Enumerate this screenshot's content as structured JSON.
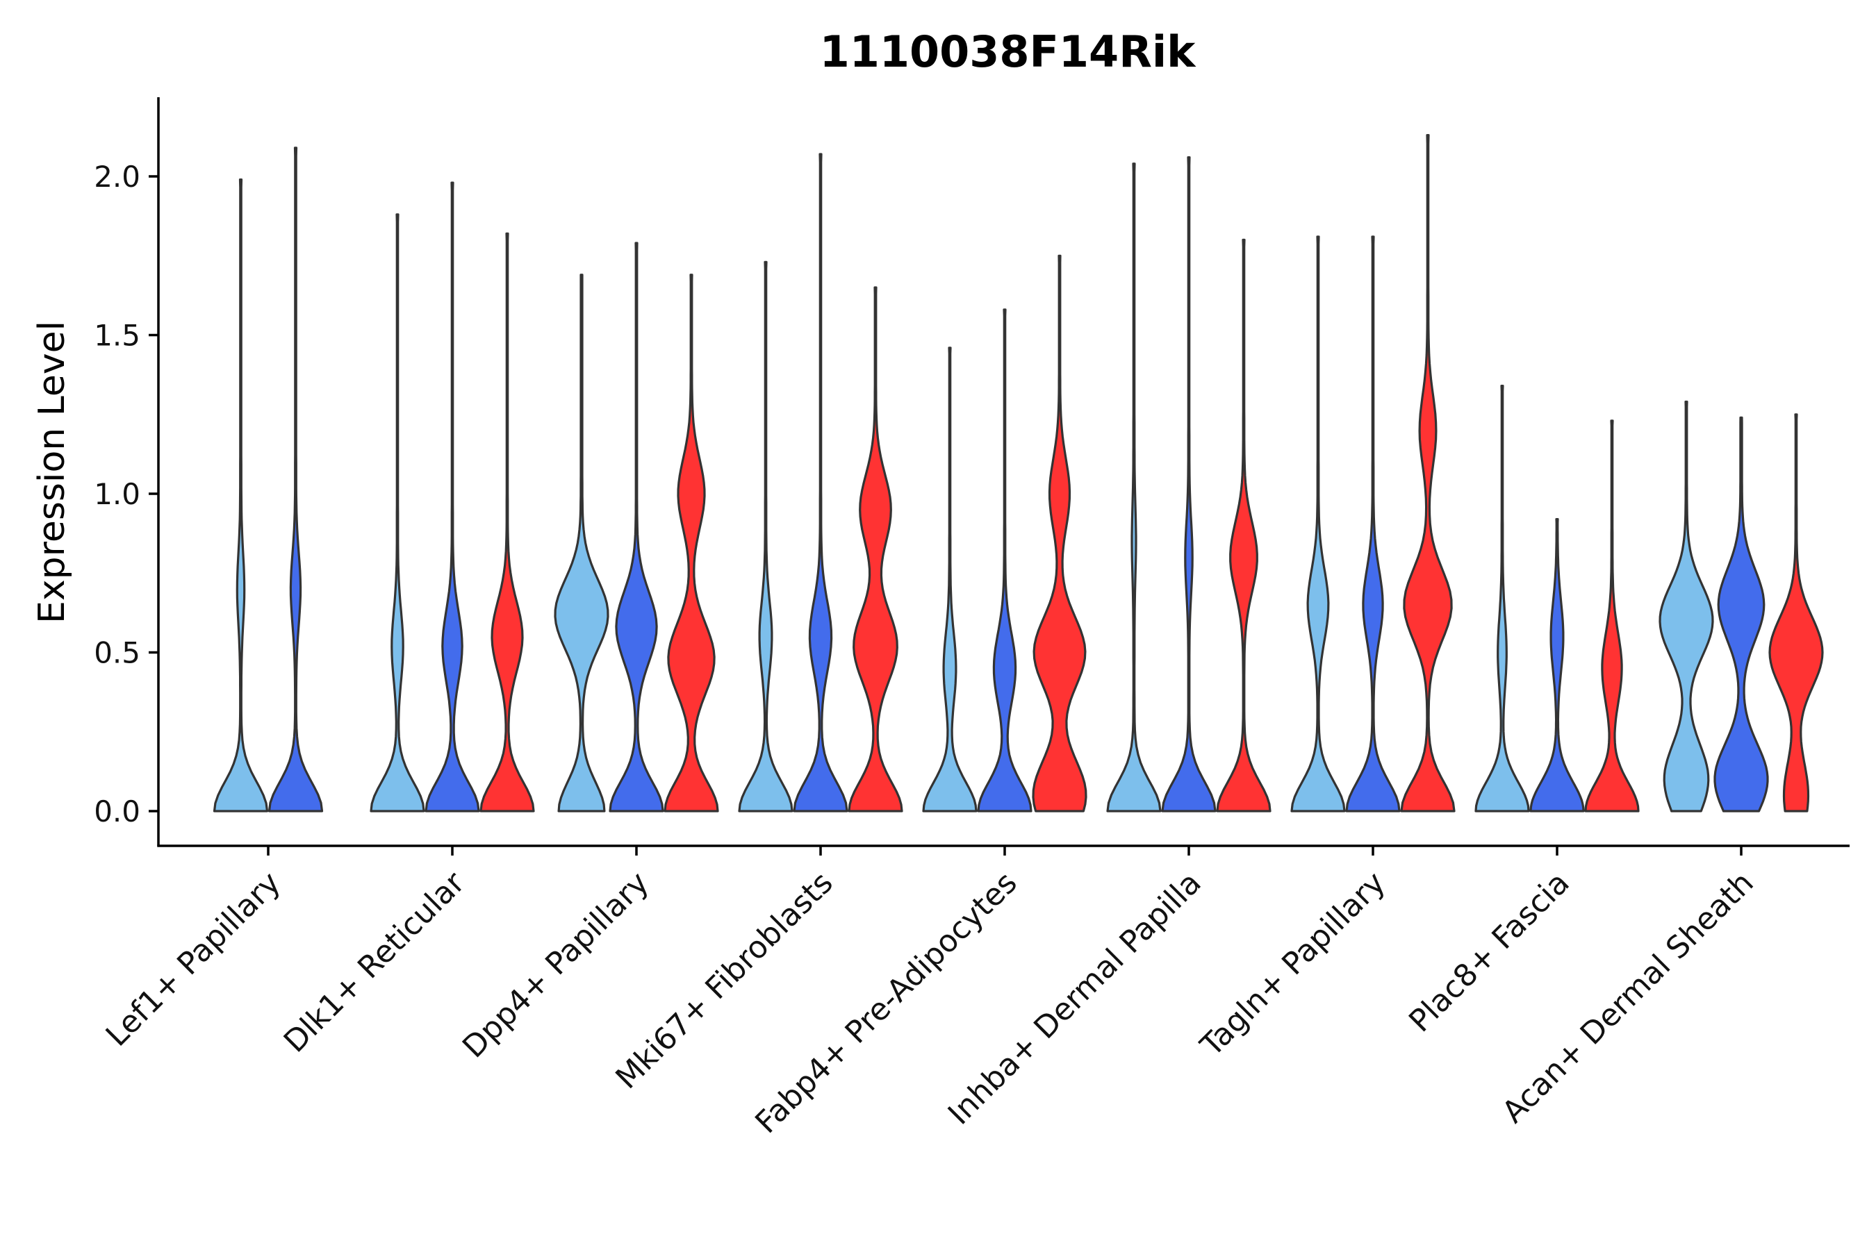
{
  "chart_data": {
    "type": "violin",
    "title": "1110038F14Rik",
    "xlabel": "",
    "ylabel": "Expression Level",
    "ylim": [
      -0.105,
      2.25
    ],
    "yticks": [
      0.0,
      0.5,
      1.0,
      1.5,
      2.0
    ],
    "ytick_labels": [
      "0.0",
      "0.5",
      "1.0",
      "1.5",
      "2.0"
    ],
    "categories": [
      "Lef1+ Papillary",
      "Dlk1+ Reticular",
      "Dpp4+ Papillary",
      "Mki67+ Fibroblasts",
      "Fabp4+ Pre-Adipocytes",
      "Inhba+ Dermal Papilla",
      "Tagln+ Papillary",
      "Plac8+ Fascia",
      "Acan+ Dermal Sheath"
    ],
    "series_colors": {
      "light": "#7DBFEC",
      "blue": "#436CEC",
      "red": "#FF3333"
    },
    "groups": [
      {
        "category": "Lef1+ Papillary",
        "violins": [
          {
            "color": "light",
            "max": 1.99,
            "modes": [
              [
                0,
                1.0
              ],
              [
                0.7,
                0.12
              ]
            ]
          },
          {
            "color": "blue",
            "max": 2.09,
            "modes": [
              [
                0,
                1.0
              ],
              [
                0.7,
                0.17
              ]
            ]
          }
        ]
      },
      {
        "category": "Dlk1+ Reticular",
        "violins": [
          {
            "color": "light",
            "max": 1.88,
            "modes": [
              [
                0,
                1.0
              ],
              [
                0.52,
                0.2
              ]
            ]
          },
          {
            "color": "blue",
            "max": 1.98,
            "modes": [
              [
                0,
                1.0
              ],
              [
                0.52,
                0.36
              ]
            ]
          },
          {
            "color": "red",
            "max": 1.82,
            "modes": [
              [
                0,
                1.0
              ],
              [
                0.55,
                0.57
              ]
            ]
          }
        ]
      },
      {
        "category": "Dpp4+ Papillary",
        "violins": [
          {
            "color": "light",
            "max": 1.69,
            "modes": [
              [
                0,
                0.62
              ],
              [
                0.62,
                0.72
              ]
            ]
          },
          {
            "color": "blue",
            "max": 1.79,
            "modes": [
              [
                0,
                0.92
              ],
              [
                0.58,
                0.7
              ]
            ]
          },
          {
            "color": "red",
            "max": 1.69,
            "modes": [
              [
                0,
                0.92
              ],
              [
                0.48,
                0.8
              ],
              [
                1.0,
                0.45
              ]
            ]
          }
        ]
      },
      {
        "category": "Mki67+ Fibroblasts",
        "violins": [
          {
            "color": "light",
            "max": 1.73,
            "modes": [
              [
                0,
                1.0
              ],
              [
                0.55,
                0.22
              ]
            ]
          },
          {
            "color": "blue",
            "max": 2.07,
            "modes": [
              [
                0,
                1.0
              ],
              [
                0.55,
                0.4
              ]
            ]
          },
          {
            "color": "red",
            "max": 1.65,
            "modes": [
              [
                0,
                0.95
              ],
              [
                0.52,
                0.78
              ],
              [
                0.95,
                0.55
              ]
            ]
          }
        ]
      },
      {
        "category": "Fabp4+ Pre-Adipocytes",
        "violins": [
          {
            "color": "light",
            "max": 1.46,
            "modes": [
              [
                0,
                1.0
              ],
              [
                0.45,
                0.22
              ]
            ]
          },
          {
            "color": "blue",
            "max": 1.58,
            "modes": [
              [
                0,
                1.0
              ],
              [
                0.45,
                0.4
              ]
            ]
          },
          {
            "color": "red",
            "max": 1.75,
            "modes": [
              [
                0.05,
                0.95
              ],
              [
                0.5,
                0.92
              ],
              [
                1.0,
                0.35
              ]
            ]
          }
        ]
      },
      {
        "category": "Inhba+ Dermal Papilla",
        "violins": [
          {
            "color": "light",
            "max": 2.04,
            "modes": [
              [
                0,
                1.0
              ],
              [
                0.85,
                0.06
              ]
            ]
          },
          {
            "color": "blue",
            "max": 2.06,
            "modes": [
              [
                0,
                1.0
              ],
              [
                0.8,
                0.12
              ]
            ]
          },
          {
            "color": "red",
            "max": 1.8,
            "modes": [
              [
                0,
                1.0
              ],
              [
                0.8,
                0.5
              ]
            ]
          }
        ]
      },
      {
        "category": "Tagln+ Papillary",
        "violins": [
          {
            "color": "light",
            "max": 1.81,
            "modes": [
              [
                0,
                1.0
              ],
              [
                0.65,
                0.38
              ]
            ]
          },
          {
            "color": "blue",
            "max": 1.81,
            "modes": [
              [
                0,
                1.0
              ],
              [
                0.65,
                0.36
              ]
            ]
          },
          {
            "color": "red",
            "max": 2.13,
            "modes": [
              [
                0,
                1.0
              ],
              [
                0.65,
                0.9
              ],
              [
                1.2,
                0.3
              ]
            ]
          }
        ]
      },
      {
        "category": "Plac8+ Fascia",
        "violins": [
          {
            "color": "light",
            "max": 1.34,
            "modes": [
              [
                0,
                1.0
              ],
              [
                0.5,
                0.15
              ]
            ]
          },
          {
            "color": "blue",
            "max": 0.92,
            "modes": [
              [
                0,
                1.0
              ],
              [
                0.55,
                0.22
              ]
            ]
          },
          {
            "color": "red",
            "max": 1.23,
            "modes": [
              [
                0,
                1.0
              ],
              [
                0.45,
                0.36
              ]
            ]
          }
        ]
      },
      {
        "category": "Acan+ Dermal Sheath",
        "violins": [
          {
            "color": "light",
            "max": 1.29,
            "modes": [
              [
                0.1,
                0.75
              ],
              [
                0.6,
                0.9
              ]
            ]
          },
          {
            "color": "blue",
            "max": 1.24,
            "modes": [
              [
                0.1,
                0.7
              ],
              [
                0.65,
                0.6
              ]
            ]
          },
          {
            "color": "red",
            "max": 1.25,
            "modes": [
              [
                0.05,
                0.45
              ],
              [
                0.5,
                1.0
              ]
            ]
          }
        ]
      }
    ]
  }
}
